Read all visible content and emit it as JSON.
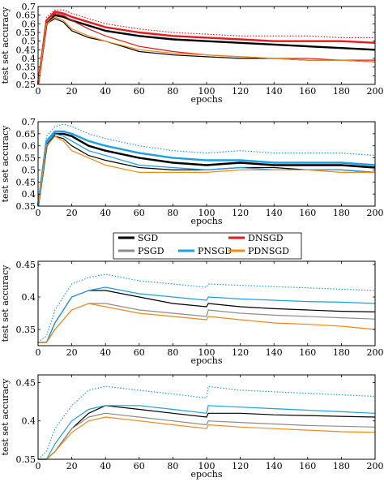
{
  "legend": {
    "items": [
      {
        "label": "SGD",
        "color": "#000000"
      },
      {
        "label": "DNSGD",
        "color": "#e41a1c"
      },
      {
        "label": "PSGD",
        "color": "#8c8c8c"
      },
      {
        "label": "PNSGD",
        "color": "#1ba0e2"
      },
      {
        "label": "PDNSGD",
        "color": "#ef8a17"
      }
    ]
  },
  "chart_data": [
    {
      "type": "line",
      "xlabel": "epochs",
      "ylabel": "test set accuracy",
      "xlim": [
        0,
        200
      ],
      "ylim": [
        0.25,
        0.7
      ],
      "xticks": [
        0,
        20,
        40,
        60,
        80,
        100,
        120,
        140,
        160,
        180,
        200
      ],
      "yticks": [
        0.25,
        0.3,
        0.35,
        0.4,
        0.45,
        0.5,
        0.55,
        0.6,
        0.65,
        0.7
      ],
      "grid": false,
      "x": [
        0,
        5,
        10,
        15,
        20,
        30,
        40,
        60,
        80,
        100,
        120,
        140,
        160,
        180,
        200
      ],
      "series": [
        {
          "name": "SGD",
          "values": [
            0.25,
            0.6,
            0.63,
            0.61,
            0.56,
            0.52,
            0.5,
            0.44,
            0.42,
            0.41,
            0.4,
            0.4,
            0.39,
            0.39,
            0.38
          ]
        },
        {
          "name": "SGD",
          "style": "smooth",
          "values": [
            0.25,
            0.6,
            0.65,
            0.64,
            0.62,
            0.59,
            0.56,
            0.53,
            0.51,
            0.5,
            0.49,
            0.48,
            0.47,
            0.46,
            0.45
          ]
        },
        {
          "name": "DNSGD",
          "values": [
            0.25,
            0.62,
            0.66,
            0.65,
            0.62,
            0.57,
            0.53,
            0.47,
            0.44,
            0.42,
            0.41,
            0.4,
            0.4,
            0.39,
            0.39
          ]
        },
        {
          "name": "DNSGD",
          "style": "smooth",
          "values": [
            0.25,
            0.62,
            0.67,
            0.66,
            0.64,
            0.61,
            0.58,
            0.55,
            0.53,
            0.52,
            0.51,
            0.5,
            0.5,
            0.5,
            0.49
          ]
        },
        {
          "name": "DNSGD",
          "style": "dotted",
          "values": [
            0.26,
            0.64,
            0.68,
            0.68,
            0.66,
            0.63,
            0.6,
            0.57,
            0.55,
            0.54,
            0.53,
            0.53,
            0.53,
            0.52,
            0.52
          ]
        },
        {
          "name": "PDNSGD",
          "values": [
            0.25,
            0.6,
            0.64,
            0.62,
            0.57,
            0.53,
            0.5,
            0.45,
            0.43,
            0.42,
            0.41,
            0.4,
            0.39,
            0.39,
            0.38
          ]
        }
      ]
    },
    {
      "type": "line",
      "xlabel": "epochs",
      "ylabel": "test set accuracy",
      "xlim": [
        0,
        200
      ],
      "ylim": [
        0.35,
        0.7
      ],
      "xticks": [
        0,
        20,
        40,
        60,
        80,
        100,
        120,
        140,
        160,
        180,
        200
      ],
      "yticks": [
        0.35,
        0.4,
        0.45,
        0.5,
        0.55,
        0.6,
        0.65,
        0.7
      ],
      "grid": false,
      "x": [
        0,
        5,
        10,
        15,
        20,
        30,
        40,
        60,
        80,
        100,
        120,
        140,
        160,
        180,
        200
      ],
      "series": [
        {
          "name": "SGD",
          "values": [
            0.35,
            0.6,
            0.64,
            0.63,
            0.6,
            0.56,
            0.54,
            0.51,
            0.5,
            0.5,
            0.51,
            0.51,
            0.5,
            0.5,
            0.49
          ]
        },
        {
          "name": "SGD",
          "style": "smooth",
          "values": [
            0.35,
            0.6,
            0.65,
            0.65,
            0.64,
            0.6,
            0.58,
            0.55,
            0.53,
            0.52,
            0.53,
            0.52,
            0.52,
            0.52,
            0.51
          ]
        },
        {
          "name": "PNSGD",
          "values": [
            0.35,
            0.61,
            0.65,
            0.64,
            0.62,
            0.58,
            0.56,
            0.52,
            0.51,
            0.5,
            0.51,
            0.5,
            0.5,
            0.5,
            0.49
          ]
        },
        {
          "name": "PNSGD",
          "style": "smooth",
          "values": [
            0.35,
            0.62,
            0.66,
            0.66,
            0.65,
            0.62,
            0.6,
            0.57,
            0.55,
            0.54,
            0.54,
            0.53,
            0.53,
            0.53,
            0.52
          ]
        },
        {
          "name": "PNSGD",
          "style": "dotted",
          "values": [
            0.36,
            0.64,
            0.68,
            0.69,
            0.68,
            0.65,
            0.63,
            0.6,
            0.58,
            0.57,
            0.58,
            0.57,
            0.57,
            0.57,
            0.56
          ]
        },
        {
          "name": "PDNSGD",
          "values": [
            0.35,
            0.6,
            0.64,
            0.62,
            0.58,
            0.55,
            0.52,
            0.49,
            0.49,
            0.49,
            0.5,
            0.5,
            0.5,
            0.49,
            0.49
          ]
        }
      ]
    },
    {
      "type": "line",
      "xlabel": "epochs",
      "ylabel": "test set accuracy",
      "xlim": [
        0,
        200
      ],
      "ylim": [
        0.325,
        0.455
      ],
      "xticks": [
        0,
        20,
        40,
        60,
        80,
        100,
        120,
        140,
        160,
        180,
        200
      ],
      "yticks": [
        0.35,
        0.4,
        0.45
      ],
      "grid": false,
      "x": [
        0,
        5,
        10,
        20,
        30,
        40,
        60,
        80,
        100,
        101,
        120,
        140,
        160,
        180,
        200
      ],
      "series": [
        {
          "name": "SGD",
          "values": [
            0.33,
            0.33,
            0.36,
            0.4,
            0.41,
            0.41,
            0.4,
            0.39,
            0.385,
            0.39,
            0.385,
            0.382,
            0.38,
            0.378,
            0.377
          ]
        },
        {
          "name": "PSGD",
          "values": [
            0.33,
            0.33,
            0.35,
            0.38,
            0.39,
            0.39,
            0.38,
            0.375,
            0.37,
            0.38,
            0.375,
            0.372,
            0.37,
            0.368,
            0.366
          ]
        },
        {
          "name": "PNSGD",
          "values": [
            0.33,
            0.33,
            0.36,
            0.4,
            0.41,
            0.415,
            0.405,
            0.4,
            0.395,
            0.4,
            0.397,
            0.395,
            0.393,
            0.392,
            0.39
          ]
        },
        {
          "name": "PNSGD",
          "style": "dotted",
          "values": [
            0.33,
            0.34,
            0.38,
            0.42,
            0.43,
            0.435,
            0.425,
            0.42,
            0.415,
            0.42,
            0.418,
            0.416,
            0.414,
            0.412,
            0.41
          ]
        },
        {
          "name": "PDNSGD",
          "values": [
            0.33,
            0.33,
            0.35,
            0.38,
            0.39,
            0.385,
            0.375,
            0.37,
            0.365,
            0.37,
            0.365,
            0.36,
            0.358,
            0.355,
            0.35
          ]
        }
      ]
    },
    {
      "type": "line",
      "xlabel": "epochs",
      "ylabel": "test set accuracy",
      "xlim": [
        0,
        200
      ],
      "ylim": [
        0.35,
        0.46
      ],
      "xticks": [
        0,
        20,
        40,
        60,
        80,
        100,
        120,
        140,
        160,
        180,
        200
      ],
      "yticks": [
        0.35,
        0.4,
        0.45
      ],
      "grid": false,
      "x": [
        0,
        5,
        10,
        20,
        30,
        40,
        60,
        80,
        100,
        101,
        120,
        140,
        160,
        180,
        200
      ],
      "series": [
        {
          "name": "SGD",
          "values": [
            0.35,
            0.35,
            0.36,
            0.39,
            0.41,
            0.42,
            0.415,
            0.41,
            0.405,
            0.41,
            0.41,
            0.408,
            0.407,
            0.406,
            0.405
          ]
        },
        {
          "name": "PSGD",
          "values": [
            0.35,
            0.35,
            0.36,
            0.39,
            0.405,
            0.41,
            0.405,
            0.4,
            0.395,
            0.4,
            0.398,
            0.396,
            0.394,
            0.393,
            0.392
          ]
        },
        {
          "name": "PNSGD",
          "values": [
            0.35,
            0.35,
            0.37,
            0.4,
            0.415,
            0.42,
            0.42,
            0.415,
            0.41,
            0.42,
            0.418,
            0.416,
            0.414,
            0.412,
            0.41
          ]
        },
        {
          "name": "PNSGD",
          "style": "dotted",
          "values": [
            0.35,
            0.36,
            0.39,
            0.42,
            0.44,
            0.445,
            0.44,
            0.435,
            0.43,
            0.445,
            0.44,
            0.438,
            0.436,
            0.434,
            0.432
          ]
        },
        {
          "name": "PDNSGD",
          "values": [
            0.35,
            0.35,
            0.36,
            0.385,
            0.4,
            0.405,
            0.4,
            0.395,
            0.39,
            0.395,
            0.392,
            0.39,
            0.388,
            0.386,
            0.385
          ]
        }
      ]
    }
  ]
}
